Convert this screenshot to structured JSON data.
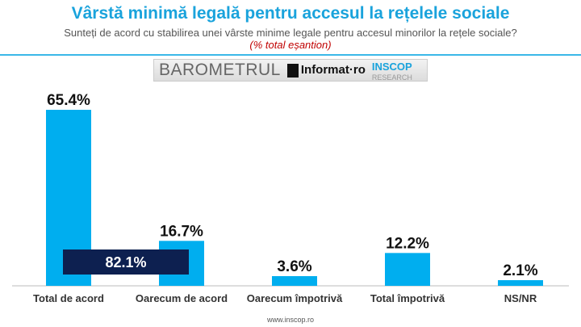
{
  "header": {
    "title": "Vârstă minimă legală pentru accesul la rețelele sociale",
    "subtitle": "Sunteți de acord cu stabilirea unei vârste minime legale pentru accesul minorilor la rețele sociale?",
    "note": "(% total eșantion)"
  },
  "logo": {
    "barometru": "BAROMETRUL",
    "informat": "Informat·ro",
    "inscop": "INSCOP",
    "research": "RESEARCH"
  },
  "footer": "www.inscop.ro",
  "colors": {
    "bar": "#00aeef",
    "summary_box": "#0d2050",
    "title": "#1aa3dc"
  },
  "chart_data": {
    "type": "bar",
    "title": "Vârstă minimă legală pentru accesul la rețelele sociale",
    "categories": [
      "Total de acord",
      "Oarecum de acord",
      "Oarecum împotrivă",
      "Total împotrivă",
      "NS/NR"
    ],
    "values": [
      65.4,
      16.7,
      3.6,
      12.2,
      2.1
    ],
    "data_labels": [
      "65.4%",
      "16.7%",
      "3.6%",
      "12.2%",
      "2.1%"
    ],
    "annotation": "82.1%",
    "ylim": [
      0,
      70
    ],
    "grid": false
  }
}
